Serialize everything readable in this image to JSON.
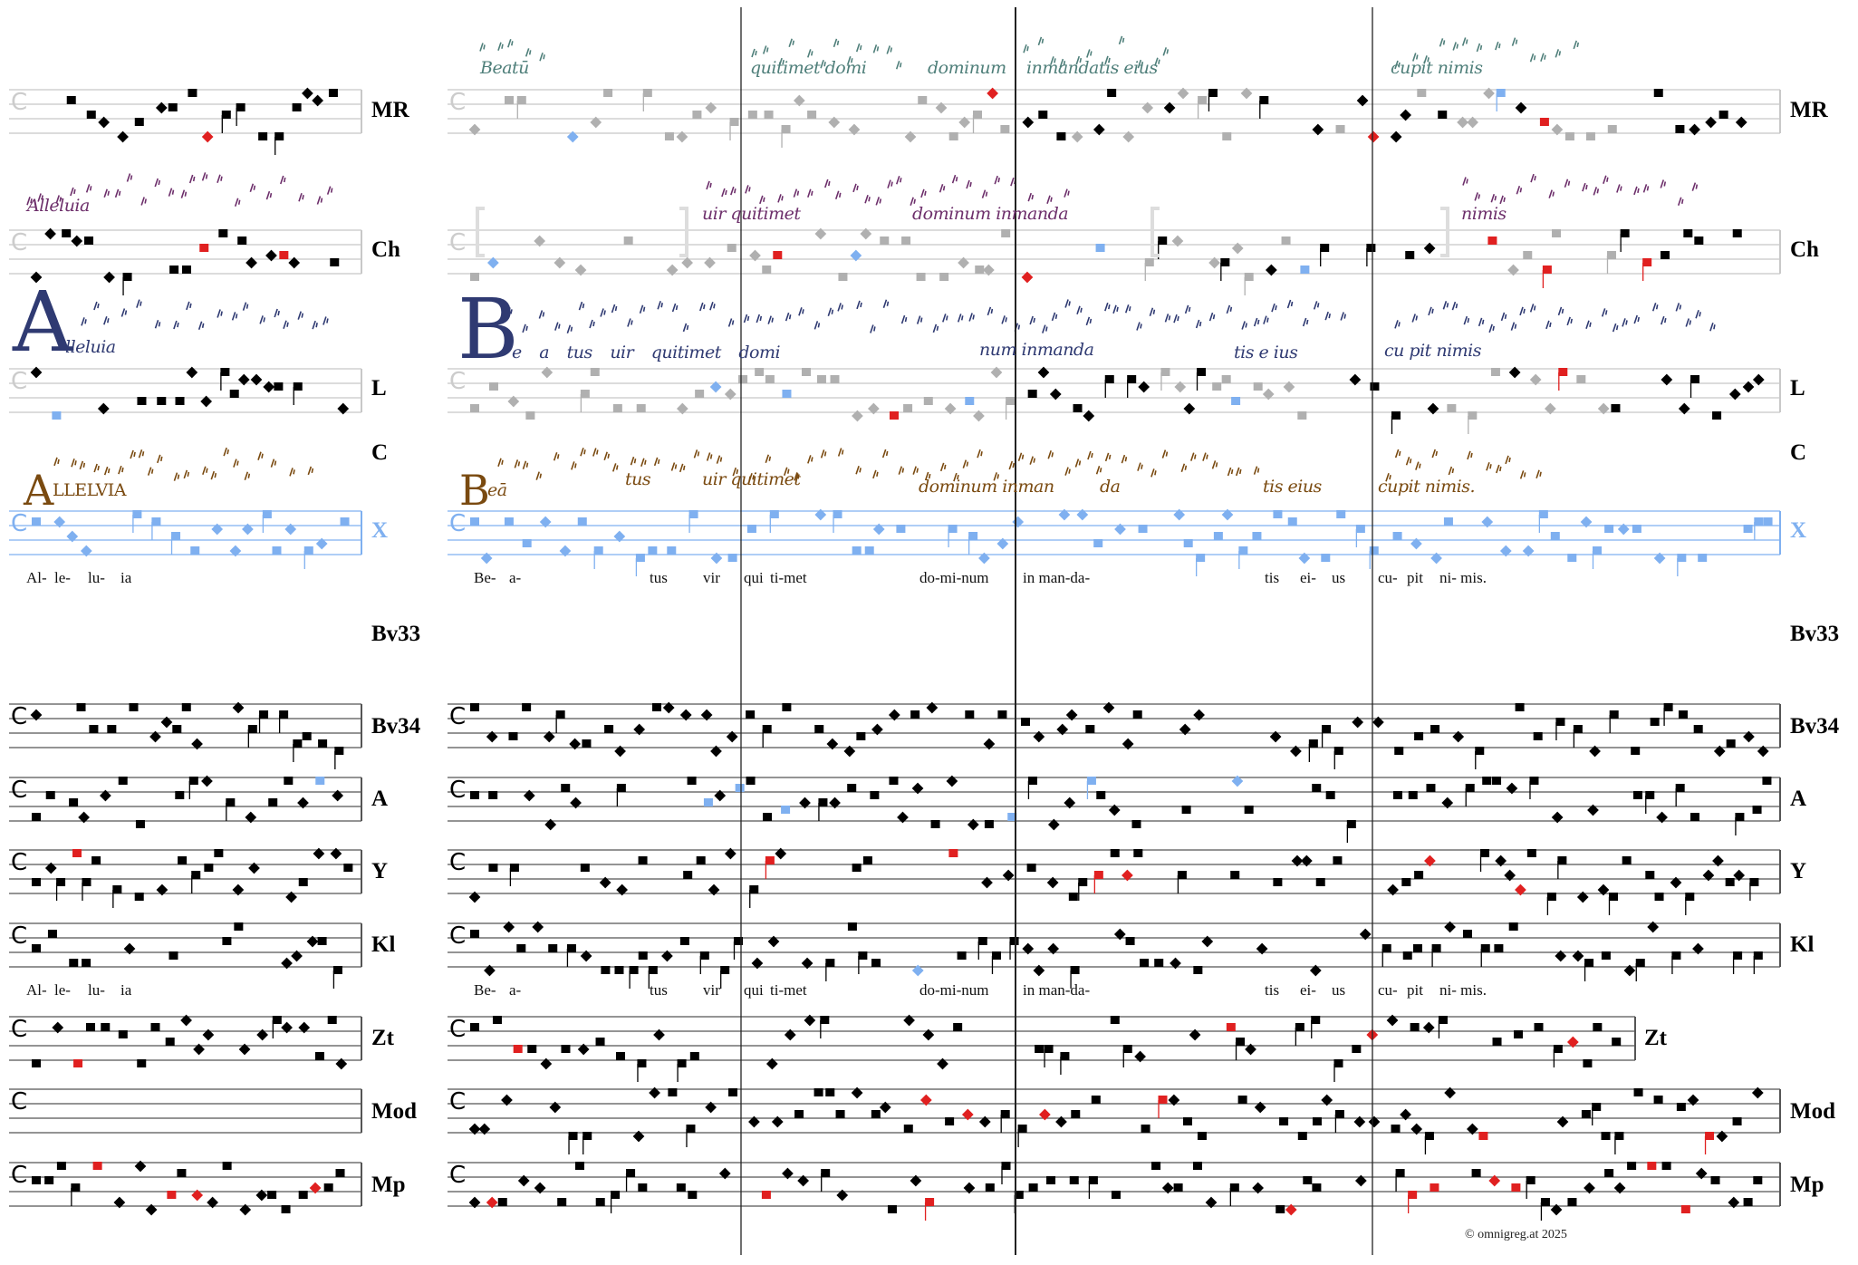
{
  "rows": {
    "MR": "MR",
    "Ch": "Ch",
    "L": "L",
    "C": "C",
    "X": "X",
    "Bv33": "Bv33",
    "Bv34": "Bv34",
    "A": "A",
    "Y": "Y",
    "Kl": "Kl",
    "Zt": "Zt",
    "Mod": "Mod",
    "Mp": "Mp"
  },
  "lyrics_top": [
    "Al-",
    "le-",
    "lu-",
    "ia",
    "Be-",
    "a-",
    "tus",
    "vir",
    "qui",
    "ti-met",
    "do-mi-num",
    "in man-da-",
    "tis",
    "ei-",
    "us",
    "cu-",
    "pit",
    "ni- mis."
  ],
  "lyrics_bottom": [
    "Al-",
    "le-",
    "lu-",
    "ia",
    "Be-",
    "a-",
    "tus",
    "vir",
    "qui",
    "ti-met",
    "do-mi-num",
    "in man-da-",
    "tis",
    "ei-",
    "us",
    "cu-",
    "pit",
    "ni- mis."
  ],
  "manuscripts": {
    "MR": [
      "Beatū",
      "quitimet domi",
      "dominum",
      "inmandatis eius",
      "cupit nimis"
    ],
    "Ch": [
      "Alleluia",
      "uir quitimet",
      "dominum inmanda",
      "nimis"
    ],
    "L": [
      "A",
      "lleluia",
      "B",
      "e  a  tus  uir quitimet  domi",
      "num inmanda",
      "tis e ius",
      "cu pit nimis"
    ],
    "C": [
      "A",
      "LLELVIA",
      "B",
      "eā",
      "tus",
      "uir quitimet",
      "dominum inman",
      "da",
      "tis eius",
      "cupit nimis."
    ]
  },
  "colors": {
    "MR": "#4f7f7a",
    "Ch": "#6d2f6b",
    "L": "#2f3a72",
    "C": "#7a4a10",
    "blue": "#7fb0f0",
    "red": "#e02020",
    "gray": "#b0b0b0"
  },
  "copyright": "© omnigreg.at    2025"
}
